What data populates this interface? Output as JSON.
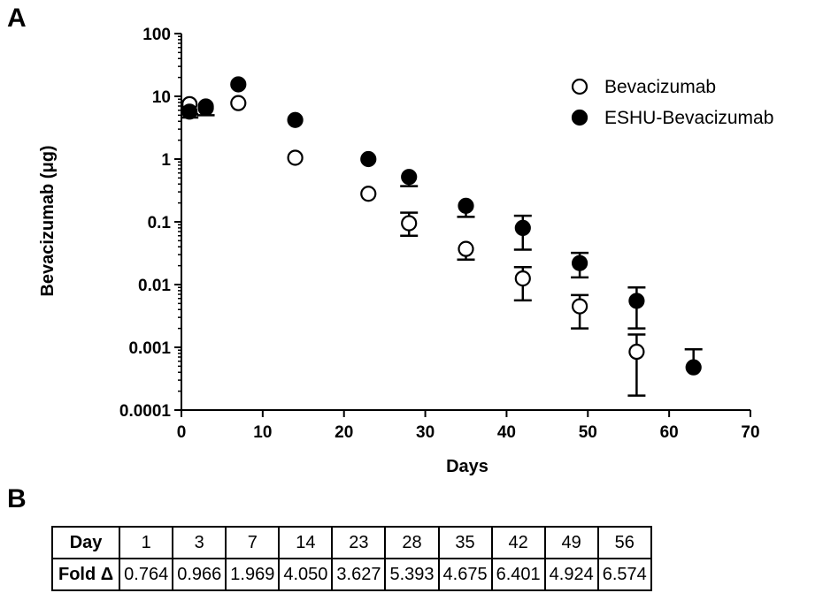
{
  "panels": {
    "a": "A",
    "b": "B"
  },
  "chart_data": {
    "type": "scatter",
    "title": "",
    "xlabel": "Days",
    "ylabel": "Bevacizumab (μg)",
    "xlim": [
      0,
      70
    ],
    "xticks": [
      0,
      10,
      20,
      30,
      40,
      50,
      60,
      70
    ],
    "ylim": [
      0.0001,
      100
    ],
    "yscale": "log",
    "yticks": [
      0.0001,
      0.001,
      0.01,
      0.1,
      1,
      10,
      100
    ],
    "ytick_labels": [
      "0.0001",
      "0.001",
      "0.01",
      "0.1",
      "1",
      "10",
      "100"
    ],
    "grid": false,
    "legend_position": "top-right",
    "series": [
      {
        "name": "Bevacizumab",
        "marker": "open-circle",
        "color": "#000000",
        "x": [
          1,
          3,
          7,
          14,
          23,
          28,
          35,
          42,
          49,
          56
        ],
        "y": [
          7.5,
          6.5,
          7.8,
          1.05,
          0.28,
          0.095,
          0.037,
          0.0125,
          0.0045,
          0.00085
        ],
        "err_low": [
          5.2,
          null,
          null,
          null,
          null,
          0.06,
          0.025,
          0.0056,
          0.002,
          0.00017
        ],
        "err_high": [
          null,
          null,
          null,
          null,
          null,
          0.14,
          null,
          0.019,
          0.0068,
          0.0016
        ]
      },
      {
        "name": "ESHU-Bevacizumab",
        "marker": "filled-circle",
        "color": "#000000",
        "x": [
          1,
          3,
          7,
          14,
          23,
          28,
          35,
          42,
          49,
          56,
          63
        ],
        "y": [
          5.7,
          6.9,
          15.5,
          4.2,
          1.0,
          0.52,
          0.18,
          0.08,
          0.022,
          0.0055,
          0.00048
        ],
        "err_low": [
          4.6,
          5.0,
          null,
          null,
          null,
          0.37,
          0.12,
          0.036,
          0.013,
          0.002,
          null
        ],
        "err_high": [
          null,
          null,
          null,
          null,
          null,
          null,
          null,
          0.125,
          0.032,
          0.009,
          0.00093
        ]
      }
    ]
  },
  "table": {
    "row1_label": "Day",
    "days": [
      "1",
      "3",
      "7",
      "14",
      "23",
      "28",
      "35",
      "42",
      "49",
      "56"
    ],
    "row2_label": "Fold Δ",
    "fold": [
      "0.764",
      "0.966",
      "1.969",
      "4.050",
      "3.627",
      "5.393",
      "4.675",
      "6.401",
      "4.924",
      "6.574"
    ]
  }
}
